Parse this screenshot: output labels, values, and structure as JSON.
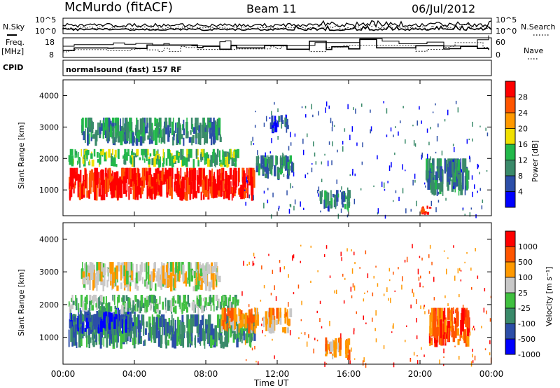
{
  "header": {
    "station": "McMurdo (fitACF)",
    "beam": "Beam 11",
    "date": "06/Jul/2012"
  },
  "left_labels": {
    "nsky": "N.Sky",
    "freq": "Freq.",
    "freq_unit": "[MHz]",
    "cpid": "CPID"
  },
  "right_labels": {
    "nsearch": "N.Search",
    "nave": "Nave"
  },
  "cpid_text": "normalsound (fast) 157 RF",
  "noise_axis": {
    "top": "10^5",
    "bottom": "10^0"
  },
  "freq_axis": {
    "ticks": [
      "18",
      "8"
    ]
  },
  "nave_axis": {
    "ticks": [
      "60",
      "0"
    ]
  },
  "x_axis": {
    "label": "Time UT",
    "ticks": [
      "00:00",
      "04:00",
      "08:00",
      "12:00",
      "16:00",
      "20:00",
      "00:00"
    ]
  },
  "colors": {
    "power": [
      "#0000ff",
      "#2c4ea8",
      "#3a8a6a",
      "#22b84a",
      "#f0e000",
      "#ff9900",
      "#ff5500",
      "#ff0000"
    ],
    "velocity": [
      "#ff0000",
      "#ff5500",
      "#ff9900",
      "#c8c8c8",
      "#40c040",
      "#3a8a6a",
      "#2c4ea8",
      "#0000ff"
    ]
  },
  "chart_data": [
    {
      "type": "heatmap",
      "name": "power",
      "ylabel": "Slant Range [km]",
      "xlabel": "Time UT",
      "xlim": [
        0,
        24
      ],
      "ylim": [
        180,
        4500
      ],
      "yticks": [
        1000,
        2000,
        3000,
        4000
      ],
      "colorbar_label": "Power [dB]",
      "colorbar_ticks": [
        "28",
        "24",
        "20",
        "16",
        "12",
        "8",
        "4"
      ],
      "colorbar_range": [
        0,
        32
      ],
      "regions": [
        {
          "t0": 0.3,
          "t1": 10.7,
          "r0": 650,
          "r1": 1700,
          "level": 7
        },
        {
          "t0": 0.3,
          "t1": 9.8,
          "r0": 1700,
          "r1": 2300,
          "level": 3
        },
        {
          "t0": 1.0,
          "t1": 8.8,
          "r0": 2400,
          "r1": 3300,
          "level": 2
        },
        {
          "t0": 10.8,
          "t1": 12.8,
          "r0": 1300,
          "r1": 2100,
          "level": 2
        },
        {
          "t0": 11.5,
          "t1": 12.6,
          "r0": 2800,
          "r1": 3400,
          "level": 1
        },
        {
          "t0": 14.3,
          "t1": 16.0,
          "r0": 300,
          "r1": 1000,
          "level": 2
        },
        {
          "t0": 20.3,
          "t1": 22.7,
          "r0": 800,
          "r1": 2000,
          "level": 2
        },
        {
          "t0": 20.0,
          "t1": 20.5,
          "r0": 200,
          "r1": 500,
          "level": 7
        }
      ]
    },
    {
      "type": "heatmap",
      "name": "velocity",
      "ylabel": "Slant Range [km]",
      "xlabel": "Time UT",
      "xlim": [
        0,
        24
      ],
      "ylim": [
        180,
        4500
      ],
      "yticks": [
        1000,
        2000,
        3000,
        4000
      ],
      "colorbar_label": "Velocity [m s⁻¹]",
      "colorbar_ticks": [
        "1000",
        "500",
        "100",
        "25",
        "-25",
        "-100",
        "-500",
        "-1000"
      ],
      "regions": [
        {
          "t0": 0.3,
          "t1": 10.7,
          "r0": 650,
          "r1": 1700,
          "level": 5
        },
        {
          "t0": 0.3,
          "t1": 4.0,
          "r0": 1100,
          "r1": 1900,
          "level": 6
        },
        {
          "t0": 0.3,
          "t1": 9.8,
          "r0": 1700,
          "r1": 2300,
          "level": 4
        },
        {
          "t0": 1.0,
          "t1": 8.8,
          "r0": 2400,
          "r1": 3300,
          "level": 3
        },
        {
          "t0": 8.8,
          "t1": 12.8,
          "r0": 1100,
          "r1": 1900,
          "level": 2
        },
        {
          "t0": 14.5,
          "t1": 16.0,
          "r0": 300,
          "r1": 1000,
          "level": 2
        },
        {
          "t0": 20.5,
          "t1": 22.7,
          "r0": 700,
          "r1": 1900,
          "level": 1
        }
      ]
    }
  ]
}
